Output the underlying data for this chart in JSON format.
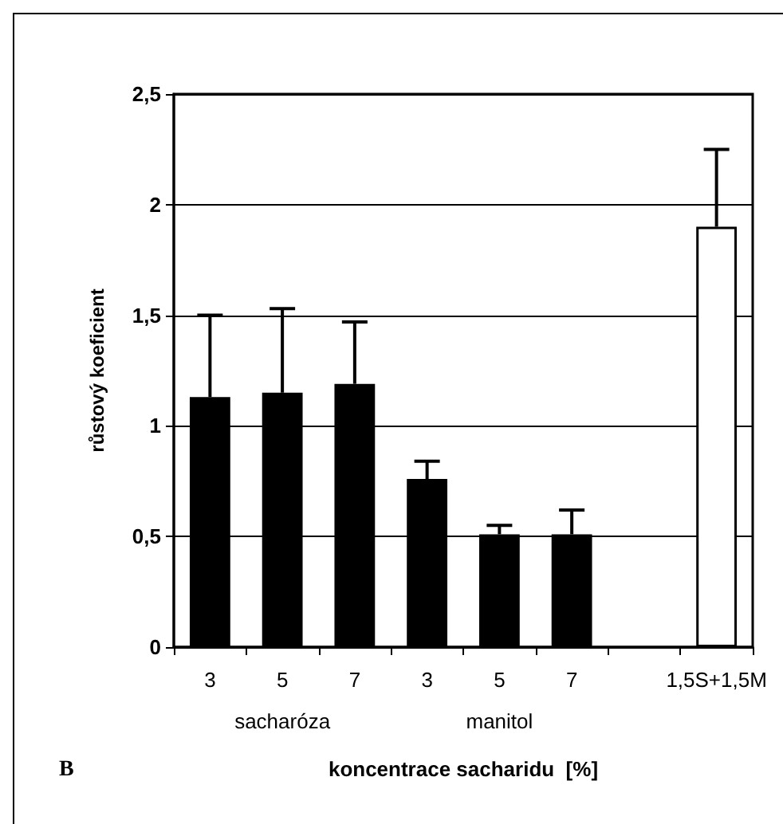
{
  "chart_data": {
    "type": "bar",
    "ylabel": "růstový koeficient",
    "xlabel": "koncentrace sacharidu  [%]",
    "categories": [
      "3",
      "5",
      "7",
      "3",
      "5",
      "7",
      null,
      "1,5S+1,5M"
    ],
    "values": [
      1.13,
      1.15,
      1.19,
      0.76,
      0.51,
      0.51,
      null,
      1.9
    ],
    "colors": [
      "#000000",
      "#000000",
      "#000000",
      "#000000",
      "#000000",
      "#000000",
      "#000000",
      "#ffffff"
    ],
    "errors": [
      [
        1.13,
        1.5
      ],
      [
        1.15,
        1.53
      ],
      [
        1.19,
        1.47
      ],
      [
        0.76,
        0.84
      ],
      [
        0.51,
        0.55
      ],
      [
        0.51,
        0.62
      ],
      null,
      [
        1.9,
        2.25
      ]
    ],
    "ylim": [
      0,
      2.5
    ],
    "yticks": [
      {
        "value": 0,
        "label": "0"
      },
      {
        "value": 0.5,
        "label": "0,5"
      },
      {
        "value": 1,
        "label": "1"
      },
      {
        "value": 1.5,
        "label": "1,5"
      },
      {
        "value": 2,
        "label": "2"
      },
      {
        "value": 2.5,
        "label": "2,5"
      }
    ],
    "grid": "y",
    "annotations": [
      "sacharóza",
      "manitol",
      "B"
    ]
  }
}
